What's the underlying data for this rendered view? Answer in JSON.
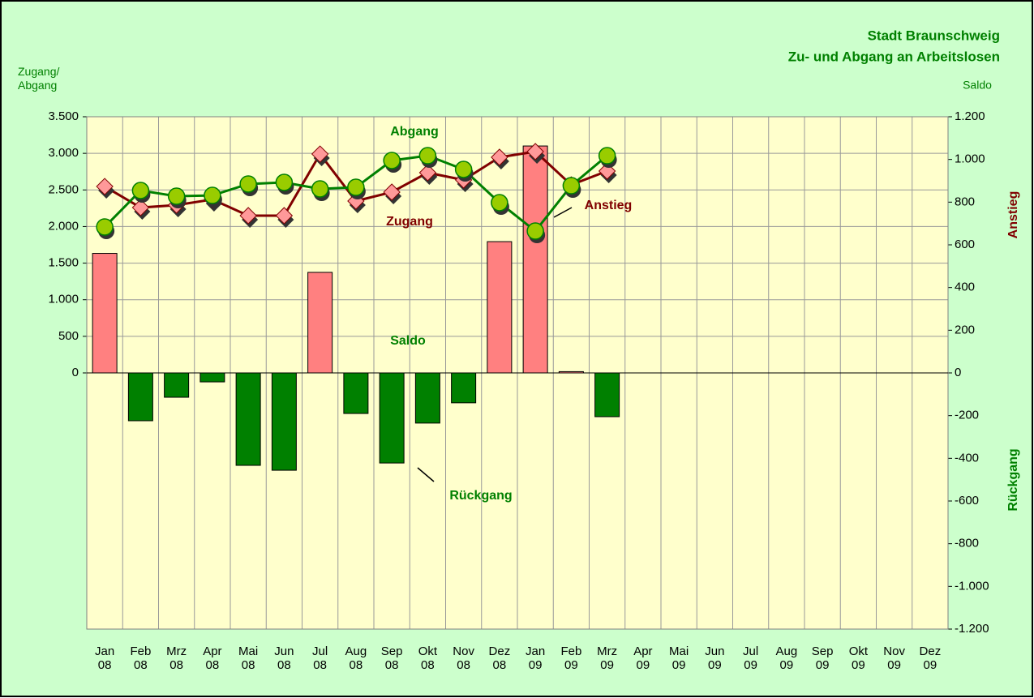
{
  "chart_data": {
    "type": "combo",
    "title": [
      "Stadt Braunschweig",
      "Zu- und Abgang an Arbeitslosen"
    ],
    "y_axis_label": "Zugang/\nAbgang",
    "y2_axis_label": "Saldo",
    "y2_positive_label": "Anstieg",
    "y2_negative_label": "Rückgang",
    "categories": [
      "Jan\n08",
      "Feb\n08",
      "Mrz\n08",
      "Apr\n08",
      "Mai\n08",
      "Jun\n08",
      "Jul\n08",
      "Aug\n08",
      "Sep\n08",
      "Okt\n08",
      "Nov\n08",
      "Dez\n08",
      "Jan\n09",
      "Feb\n09",
      "Mrz\n09",
      "Apr\n09",
      "Mai\n09",
      "Jun\n09",
      "Jul\n09",
      "Aug\n09",
      "Sep\n09",
      "Okt\n09",
      "Nov\n09",
      "Dez\n09"
    ],
    "series": [
      {
        "name": "Saldo",
        "type": "bar",
        "axis": "y2",
        "positive_color": "#ff8080",
        "negative_color": "#008000",
        "values": [
          560,
          -224,
          -114,
          -42,
          -433,
          -456,
          471,
          -190,
          -422,
          -235,
          -140,
          615,
          1063,
          6,
          -205,
          null,
          null,
          null,
          null,
          null,
          null,
          null,
          null,
          null
        ]
      },
      {
        "name": "Zugang",
        "type": "line",
        "marker": "diamond",
        "color": "#800000",
        "marker_color": "#ff9999",
        "values": [
          2547,
          2259,
          2293,
          2370,
          2149,
          2149,
          2990,
          2348,
          2470,
          2736,
          2636,
          2946,
          3024,
          2569,
          2758,
          null,
          null,
          null,
          null,
          null,
          null,
          null,
          null,
          null
        ]
      },
      {
        "name": "Abgang",
        "type": "line",
        "marker": "circle",
        "color": "#008000",
        "marker_color": "#99cc00",
        "values": [
          1994,
          2492,
          2414,
          2425,
          2581,
          2603,
          2514,
          2536,
          2902,
          2968,
          2780,
          2326,
          1938,
          2558,
          2968,
          null,
          null,
          null,
          null,
          null,
          null,
          null,
          null,
          null
        ]
      }
    ],
    "annotations": [
      {
        "text": "Abgang",
        "color": "#008000"
      },
      {
        "text": "Zugang",
        "color": "#800000"
      },
      {
        "text": "Saldo",
        "color": "#008000"
      },
      {
        "text": "Anstieg",
        "color": "#800000"
      },
      {
        "text": "Rückgang",
        "color": "#008000"
      }
    ],
    "ylim": [
      -3500,
      3500
    ],
    "yticks": [
      0,
      500,
      {
        "value": 1000,
        "label": "1.000"
      },
      {
        "value": 1500,
        "label": "1.500"
      },
      {
        "value": 2000,
        "label": "2.000"
      },
      {
        "value": 2500,
        "label": "2.500"
      },
      {
        "value": 3000,
        "label": "3.000"
      },
      {
        "value": 3500,
        "label": "3.500"
      }
    ],
    "y2lim": [
      -1200,
      1200
    ],
    "y2ticks": [
      {
        "value": -1200,
        "label": "-1.200"
      },
      {
        "value": -1000,
        "label": "-1.000"
      },
      -800,
      -600,
      -400,
      -200,
      0,
      200,
      400,
      600,
      800,
      {
        "value": 1000,
        "label": "1.000"
      },
      {
        "value": 1200,
        "label": "1.200"
      }
    ],
    "grid": true
  }
}
